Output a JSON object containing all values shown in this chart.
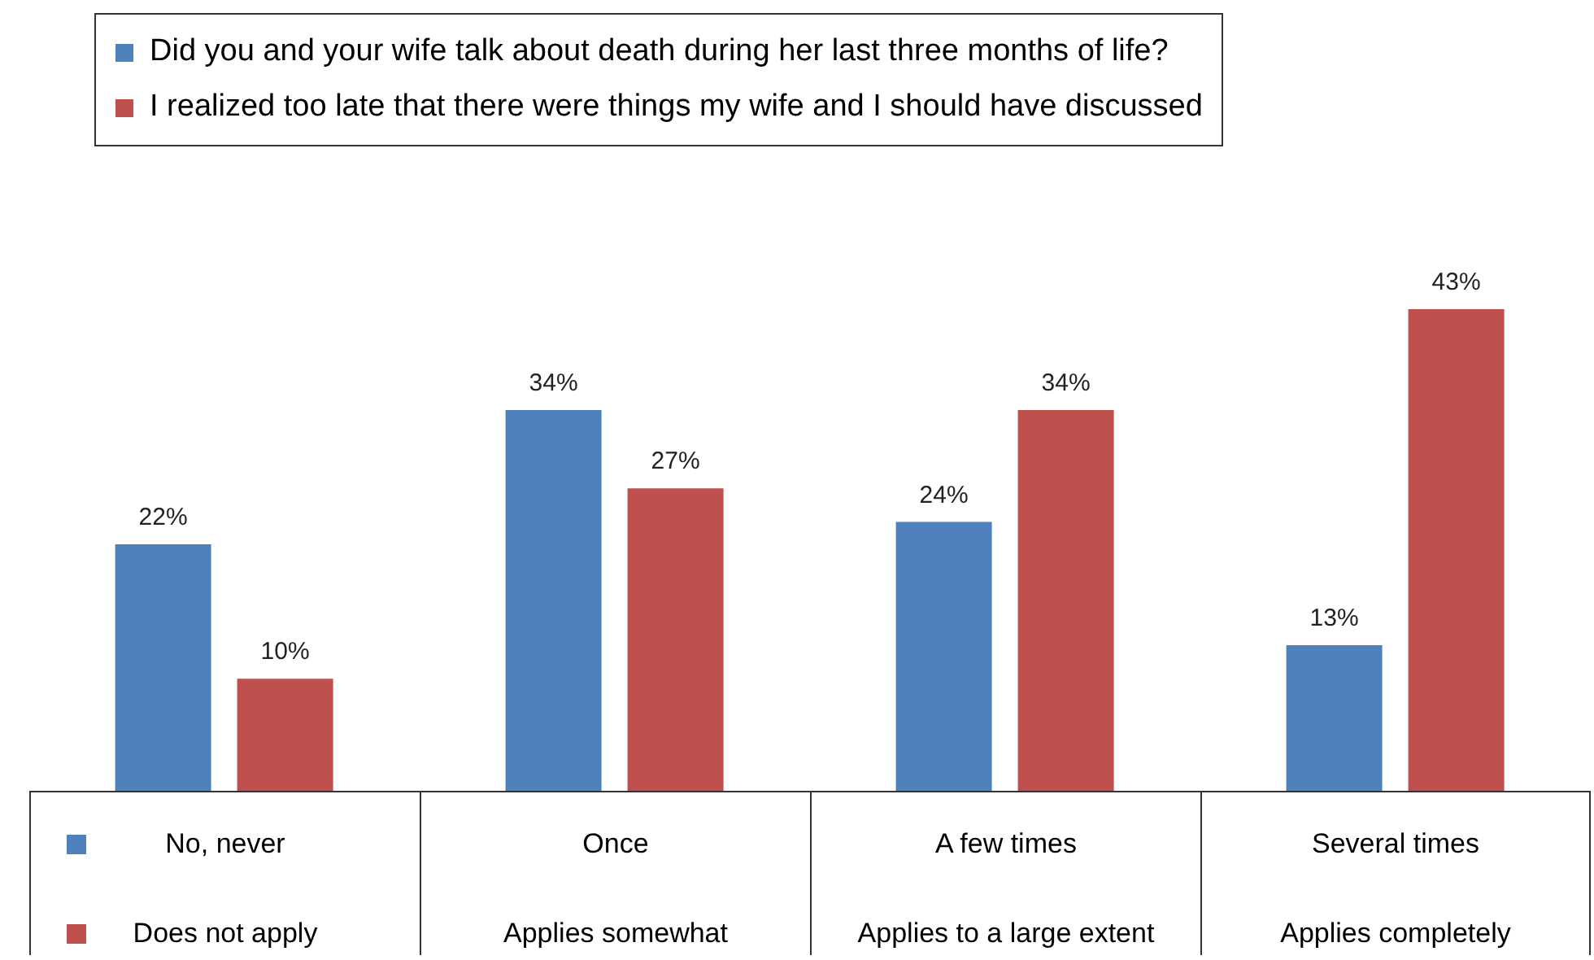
{
  "chart_data": {
    "type": "bar",
    "categories": [
      "No, never",
      "Once",
      "A few times",
      "Several times"
    ],
    "annotations": [
      "Does not apply",
      "Applies somewhat",
      "Applies to a large extent",
      "Applies completely"
    ],
    "series": [
      {
        "name": "Did you and your wife talk about death during her last three months of life?",
        "color": "#4f81bd",
        "values": [
          22,
          34,
          24,
          13
        ],
        "value_labels": [
          "22%",
          "34%",
          "24%",
          "13%"
        ]
      },
      {
        "name": "I realized too late that there were things my wife and I should have discussed",
        "color": "#c0504d",
        "values": [
          10,
          27,
          34,
          43
        ],
        "value_labels": [
          "10%",
          "27%",
          "34%",
          "43%"
        ]
      }
    ],
    "legend": "top"
  }
}
